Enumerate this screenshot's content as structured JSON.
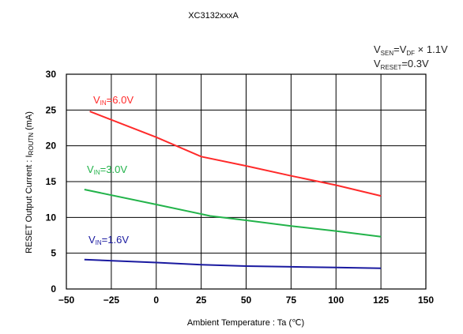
{
  "chart_data": {
    "type": "line",
    "title": "XC3132xxxA",
    "xlabel": "Ambient Temperature : Ta (℃)",
    "ylabel": "RESET Output Current : IRoutN (mA)",
    "ylabel_main": "RESET Output Current : I",
    "ylabel_sub": "ROUTN",
    "ylabel_unit": " (mA)",
    "xlim": [
      -50,
      150
    ],
    "ylim": [
      0,
      30
    ],
    "xticks": [
      -50,
      -25,
      0,
      25,
      50,
      75,
      100,
      125,
      150
    ],
    "yticks": [
      0,
      5,
      10,
      15,
      20,
      25,
      30
    ],
    "grid": true,
    "conditions": [
      {
        "main": "V",
        "sub": "SEN",
        "rest": "=V",
        "sub2": "DF",
        "rest2": " × 1.1V"
      },
      {
        "main": "V",
        "sub": "RESET",
        "rest": "=0.3V",
        "sub2": "",
        "rest2": ""
      }
    ],
    "series": [
      {
        "name": "VIN=6.0V",
        "label_main": "V",
        "label_sub": "IN",
        "label_rest": "=6.0V",
        "color": "#ff2a2a",
        "x": [
          -37,
          0,
          25,
          50,
          75,
          100,
          125
        ],
        "y": [
          24.8,
          21.2,
          18.5,
          17.2,
          15.8,
          14.5,
          13.0
        ]
      },
      {
        "name": "VIN=3.0V",
        "label_main": "V",
        "label_sub": "IN",
        "label_rest": "=3.0V",
        "color": "#22b34a",
        "x": [
          -40,
          0,
          30,
          50,
          75,
          100,
          125
        ],
        "y": [
          13.9,
          11.8,
          10.2,
          9.6,
          8.8,
          8.1,
          7.3
        ]
      },
      {
        "name": "VIN=1.6V",
        "label_main": "V",
        "label_sub": "IN",
        "label_rest": "=1.6V",
        "color": "#1a1aa0",
        "x": [
          -40,
          0,
          25,
          50,
          75,
          100,
          125
        ],
        "y": [
          4.1,
          3.7,
          3.4,
          3.2,
          3.1,
          3.0,
          2.9
        ]
      }
    ]
  }
}
